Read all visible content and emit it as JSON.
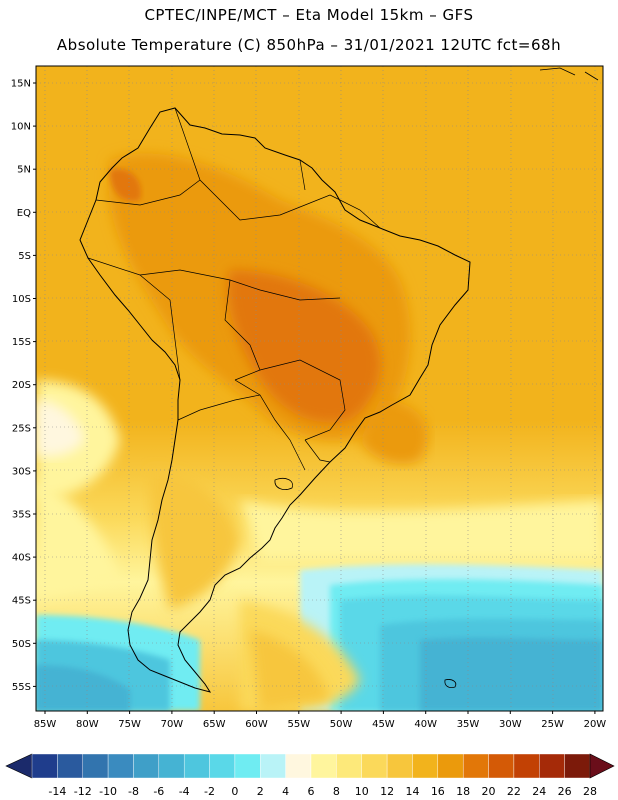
{
  "header": {
    "line1": "CPTEC/INPE/MCT –  Eta Model 15km – GFS",
    "line2": "Absolute Temperature (C) 850hPa – 31/01/2021 12UTC fct=68h"
  },
  "map": {
    "lon_labels": [
      "85W",
      "80W",
      "75W",
      "70W",
      "65W",
      "60W",
      "55W",
      "50W",
      "45W",
      "40W",
      "35W",
      "30W",
      "25W",
      "20W"
    ],
    "lat_labels": [
      "15N",
      "10N",
      "5N",
      "EQ",
      "5S",
      "10S",
      "15S",
      "20S",
      "25S",
      "30S",
      "35S",
      "40S",
      "45S",
      "50S",
      "55S"
    ],
    "lon_range": [
      -86,
      -19
    ],
    "lat_range": [
      17,
      -58
    ],
    "gridlines": true,
    "land_outline_color": "#000000"
  },
  "colorbar": {
    "labels": [
      "-14",
      "-12",
      "-10",
      "-8",
      "-6",
      "-4",
      "-2",
      "0",
      "2",
      "4",
      "6",
      "8",
      "10",
      "12",
      "14",
      "16",
      "18",
      "20",
      "22",
      "24",
      "26",
      "28"
    ],
    "colors": [
      "#1f3d8c",
      "#2a5a9e",
      "#3274ae",
      "#3a8bbf",
      "#3f9fc8",
      "#45b3d3",
      "#4ec6de",
      "#5ad8e8",
      "#6fecf2",
      "#b9f3f7",
      "#fff7df",
      "#fff59d",
      "#fde97a",
      "#fbd95a",
      "#f7c63c",
      "#f2b31c",
      "#eb9a0c",
      "#e27708",
      "#d45a06",
      "#c24104",
      "#a52a08",
      "#7c1a0a"
    ],
    "arrow_left_color": "#1b2a6b",
    "arrow_right_color": "#6a0e1a"
  }
}
